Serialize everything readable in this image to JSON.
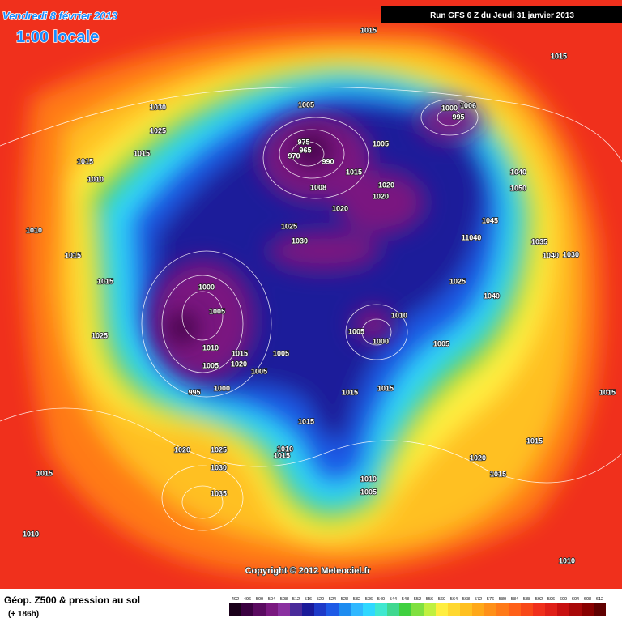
{
  "header": {
    "date": "Vendredi 8 février 2013",
    "time": "1:00 locale",
    "run": "Run GFS 6 Z du Jeudi 31 janvier 2013"
  },
  "map": {
    "copyright": "Copyright © 2012 Meteociel.fr",
    "pressure_labels": [
      "1015",
      "1015",
      "1030",
      "1025",
      "1015",
      "1015",
      "1010",
      "1005",
      "1000",
      "1006",
      "995",
      "975",
      "965",
      "970",
      "990",
      "1005",
      "1015",
      "1008",
      "1020",
      "1020",
      "1020",
      "1040",
      "1050",
      "1025",
      "1030",
      "1045",
      "11040",
      "1035",
      "1040",
      "1030",
      "1010",
      "1015",
      "1015",
      "1025",
      "1000",
      "1005",
      "1040",
      "1010",
      "1005",
      "1000",
      "1005",
      "1025",
      "1010",
      "1015",
      "1005",
      "1020",
      "1005",
      "1005",
      "1000",
      "995",
      "1015",
      "1015",
      "1015",
      "1015",
      "1015",
      "1020",
      "1025",
      "1010",
      "1015",
      "1030",
      "1020",
      "1015",
      "1015",
      "1010",
      "1005",
      "1035",
      "1010",
      "1010"
    ]
  },
  "legend": {
    "title": "Géop. Z500 & pression au sol",
    "subtitle": "(+ 186h)",
    "scale": [
      492,
      496,
      500,
      504,
      508,
      512,
      516,
      520,
      524,
      528,
      532,
      536,
      540,
      544,
      548,
      552,
      556,
      560,
      564,
      568,
      572,
      576,
      580,
      584,
      588,
      592,
      596,
      600,
      604,
      608,
      612
    ]
  }
}
